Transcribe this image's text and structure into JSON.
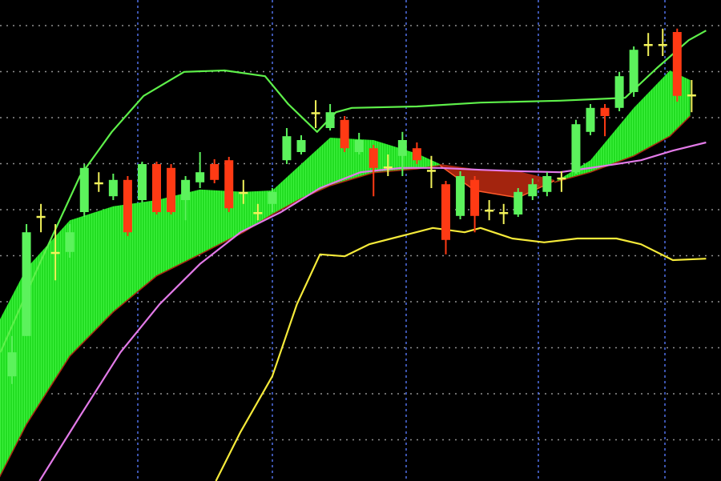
{
  "chart_data": {
    "type": "candlestick",
    "title": "",
    "xlabel": "",
    "ylabel": "",
    "xlim": [
      0,
      49
    ],
    "ylim": [
      0,
      100
    ],
    "grid": true,
    "legend": "none",
    "colors": {
      "background": "#000000",
      "up": "#5cf25c",
      "down": "#ff3a14",
      "doji": "#f2f25a",
      "upper_band": "#5ef04a",
      "middle_band": "#e27ae8",
      "lower_band": "#f5ea3a",
      "cloud_up": "#22dd22",
      "cloud_down": "#c02a10",
      "grid_h": "#bfbfbf",
      "grid_v": "#5a7cff"
    },
    "candles_ohlc": [
      [
        21.8,
        30.2,
        20.2,
        26.8
      ],
      [
        30.2,
        53.5,
        30.2,
        51.8
      ],
      [
        55.2,
        57.7,
        51.8,
        55.2
      ],
      [
        47.7,
        53.5,
        41.8,
        47.7
      ],
      [
        47.7,
        53.5,
        46.5,
        51.8
      ],
      [
        56,
        66,
        55,
        65.2
      ],
      [
        62.2,
        64.3,
        60.2,
        62.2
      ],
      [
        59.3,
        64,
        58.5,
        62.7
      ],
      [
        62.7,
        63.5,
        51,
        51.8
      ],
      [
        58.5,
        66.5,
        58,
        66
      ],
      [
        66,
        66.5,
        55.5,
        56
      ],
      [
        65.2,
        66,
        55.5,
        56
      ],
      [
        58.5,
        63.5,
        54.3,
        62.7
      ],
      [
        62.2,
        68.5,
        61,
        64.3
      ],
      [
        66,
        67,
        62,
        62.7
      ],
      [
        66.8,
        67.5,
        56,
        56.8
      ],
      [
        60.2,
        62.7,
        57.7,
        60.2
      ],
      [
        56,
        57.7,
        54.3,
        56
      ],
      [
        57.7,
        61,
        56,
        60.2
      ],
      [
        66.8,
        73.5,
        66,
        71.8
      ],
      [
        68.5,
        72,
        68,
        71
      ],
      [
        76.8,
        79.3,
        73.5,
        76.8
      ],
      [
        73.5,
        78.5,
        73,
        76.8
      ],
      [
        75.2,
        76,
        68.5,
        69.3
      ],
      [
        68.5,
        72.5,
        68,
        71
      ],
      [
        69.3,
        70,
        59.3,
        65.2
      ],
      [
        65.5,
        68,
        63.5,
        65.5
      ],
      [
        67.7,
        72.7,
        63.5,
        71
      ],
      [
        69.3,
        70.5,
        66,
        66.8
      ],
      [
        64.8,
        67.7,
        61,
        64.8
      ],
      [
        61.8,
        62.5,
        47.2,
        50.2
      ],
      [
        55.2,
        64.5,
        54.5,
        63.5
      ],
      [
        62.7,
        63.5,
        51.8,
        55.2
      ],
      [
        56.5,
        58.5,
        54.3,
        56.5
      ],
      [
        56,
        57.7,
        53.5,
        56
      ],
      [
        55.5,
        61,
        55,
        60.2
      ],
      [
        59.3,
        63,
        58.5,
        61.8
      ],
      [
        60.2,
        64.3,
        59.3,
        63.5
      ],
      [
        63.2,
        64.5,
        60.2,
        63.2
      ],
      [
        64.3,
        75.2,
        64,
        74.3
      ],
      [
        72.7,
        78.5,
        72,
        77.7
      ],
      [
        77.7,
        78.5,
        71.8,
        76
      ],
      [
        77.7,
        85.2,
        77,
        84.3
      ],
      [
        81,
        90.5,
        80,
        89.8
      ],
      [
        91,
        93.3,
        88.5,
        91
      ],
      [
        91,
        94.2,
        88.5,
        91
      ],
      [
        93.5,
        94.2,
        79,
        80.2
      ],
      [
        80.5,
        83.5,
        76.8,
        80.5
      ]
    ],
    "lines": [
      {
        "role": "upper_band",
        "x": [
          0.2,
          2.9,
          5.7,
          7.9,
          10.1,
          12.9,
          15.7,
          18.5,
          20.1,
          22.1,
          23.4,
          24.5,
          29,
          33.4,
          38.9,
          43.4,
          45.6,
          47.8,
          49
        ],
        "y": [
          26.8,
          45.2,
          63.5,
          72.7,
          80.2,
          85.2,
          85.5,
          84.3,
          78.5,
          72.7,
          76.8,
          77.7,
          78,
          78.8,
          79.2,
          79.8,
          86,
          91.8,
          93.8
        ]
      },
      {
        "role": "middle_band",
        "x": [
          2.9,
          5.7,
          8.5,
          11.2,
          14,
          16.8,
          19.6,
          22.3,
          25.1,
          27.9,
          30.6,
          33.4,
          36.2,
          38.9,
          41.7,
          44.5,
          46.7,
          49
        ],
        "y": [
          0,
          13.5,
          26.8,
          36.8,
          45.2,
          51.8,
          56,
          61,
          64.3,
          65.2,
          65.2,
          64.8,
          64.5,
          64.3,
          65.5,
          66.8,
          68.8,
          70.5
        ]
      },
      {
        "role": "lower_band",
        "x": [
          15.1,
          16.8,
          19,
          20.7,
          22.3,
          24,
          25.7,
          27.9,
          30.1,
          32.3,
          33.4,
          35.6,
          37.8,
          40.1,
          42.8,
          44.5,
          46.7,
          49
        ],
        "y": [
          0,
          10.2,
          21.8,
          36.8,
          47.2,
          46.8,
          49.3,
          51,
          52.7,
          51.8,
          52.7,
          50.5,
          49.7,
          50.5,
          50.5,
          49.3,
          46,
          46.3
        ]
      }
    ],
    "clouds": [
      {
        "role": "cloud_up",
        "x": [
          0,
          2,
          5,
          8,
          11,
          14,
          17,
          19,
          21,
          23,
          26,
          29,
          30.6
        ],
        "top": [
          32.7,
          44.3,
          54.3,
          57.2,
          58.5,
          60.7,
          60.2,
          60.5,
          66,
          71.5,
          71,
          68.2,
          66
        ],
        "bottom": [
          0,
          11.8,
          26,
          35.2,
          42.7,
          47.2,
          51.8,
          55.5,
          58.8,
          61.5,
          64.2,
          65,
          65.7
        ]
      },
      {
        "role": "cloud_down",
        "x": [
          30.6,
          33,
          36,
          38.5
        ],
        "top": [
          66,
          65,
          64.5,
          62.7
        ],
        "bottom": [
          65.7,
          60.5,
          59,
          62.5
        ]
      },
      {
        "role": "cloud_up",
        "x": [
          38.5,
          41,
          44,
          46.5,
          47.9
        ],
        "top": [
          62.2,
          66.8,
          77.7,
          85.5,
          83.5
        ],
        "bottom": [
          62.2,
          64.3,
          67.7,
          71.8,
          76
        ]
      }
    ]
  }
}
